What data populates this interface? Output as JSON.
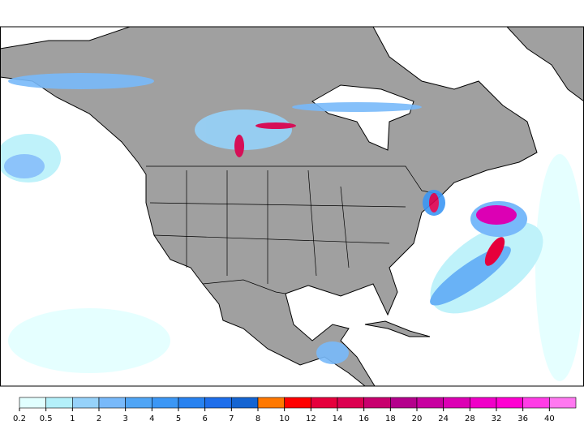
{
  "legend": {
    "ticks": [
      0.2,
      0.5,
      1,
      2,
      3,
      4,
      5,
      6,
      7,
      8,
      10,
      12,
      14,
      16,
      18,
      20,
      24,
      28,
      32,
      36,
      40
    ],
    "colors": [
      "#e1ffff",
      "#b4f0fa",
      "#96d2fa",
      "#78b9fa",
      "#50a5f5",
      "#3c97f5",
      "#2882f0",
      "#1e6eeb",
      "#1464d2",
      "#ff7800",
      "#ff0000",
      "#e6003c",
      "#dc0050",
      "#c8006e",
      "#b4008c",
      "#c800a0",
      "#dc00b4",
      "#f000c8",
      "#ff00d2",
      "#ff3ce6",
      "#ff78f0"
    ]
  }
}
